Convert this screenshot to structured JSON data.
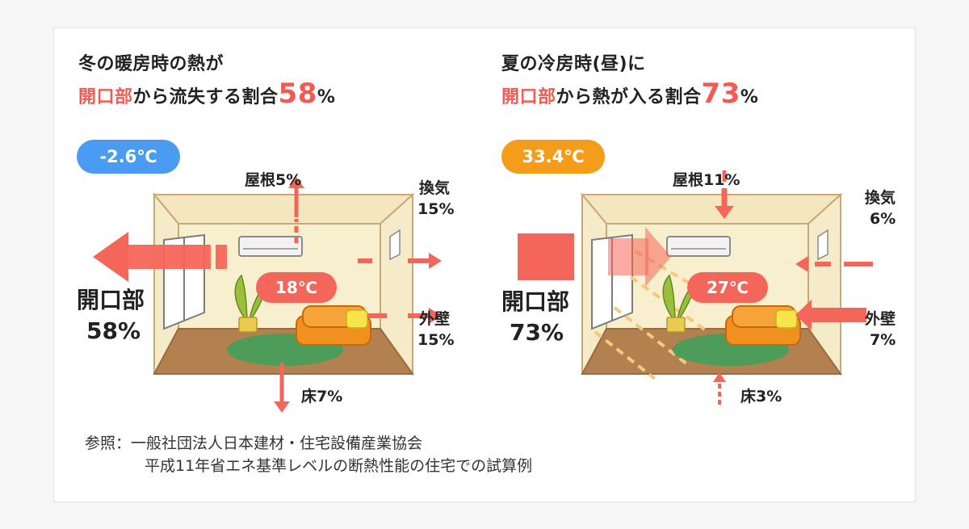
{
  "colors": {
    "accent_red": "#f45a52",
    "arrow_red": "#f46659",
    "cold_blue": "#4a9cf2",
    "warm_orange": "#f59c1a",
    "room_wall": "#f8efcf",
    "room_floor": "#b3804f",
    "rug": "#4e9c5a",
    "sofa": "#f0911f"
  },
  "winter": {
    "title_line1": "冬の暖房時の熱が",
    "title_highlight": "開口部",
    "title_rest": "から流失する割合",
    "percent_number": "58",
    "percent_symbol": "%",
    "outdoor_temp": "-2.6℃",
    "indoor_temp": "18℃",
    "opening_label": "開口部",
    "opening_pct": "58%",
    "roof_label": "屋根5%",
    "ventilation_label": "換気",
    "ventilation_pct": "15%",
    "wall_label": "外壁",
    "wall_pct": "15%",
    "floor_label": "床7%"
  },
  "summer": {
    "title_line1": "夏の冷房時(昼)に",
    "title_highlight": "開口部",
    "title_rest": "から熱が入る割合",
    "percent_number": "73",
    "percent_symbol": "%",
    "outdoor_temp": "33.4℃",
    "indoor_temp": "27℃",
    "opening_label": "開口部",
    "opening_pct": "73%",
    "roof_label": "屋根11%",
    "ventilation_label": "換気",
    "ventilation_pct": "6%",
    "wall_label": "外壁",
    "wall_pct": "7%",
    "floor_label": "床3%"
  },
  "source": {
    "line1": "参照：一般社団法人日本建材・住宅設備産業協会",
    "line2": "平成11年省エネ基準レベルの断熱性能の住宅での試算例"
  }
}
